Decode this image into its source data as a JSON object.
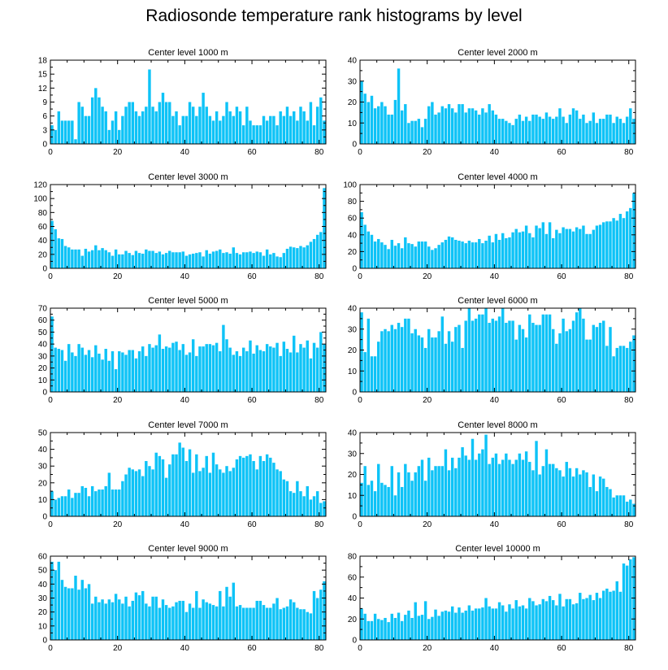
{
  "title": "Radiosonde temperature rank histograms by level",
  "bar_color": "#0ec3f7",
  "chart_data": [
    {
      "type": "bar",
      "title": "Center level 1000 m",
      "xlim": [
        0,
        82
      ],
      "ylim": [
        0,
        18
      ],
      "xticks": [
        0,
        20,
        40,
        60,
        80
      ],
      "yticks": [
        0,
        3,
        6,
        9,
        12,
        15,
        18
      ],
      "values": [
        4,
        3,
        7,
        5,
        5,
        5,
        5,
        1,
        9,
        8,
        6,
        6,
        10,
        12,
        10,
        8,
        7,
        3,
        5,
        7,
        3,
        6,
        8,
        9,
        9,
        7,
        6,
        7,
        8,
        16,
        8,
        7,
        9,
        11,
        9,
        9,
        6,
        7,
        4,
        6,
        6,
        9,
        8,
        6,
        8,
        11,
        8,
        6,
        5,
        7,
        5,
        6,
        9,
        7,
        6,
        8,
        7,
        4,
        8,
        5,
        4,
        4,
        4,
        6,
        5,
        6,
        6,
        4,
        7,
        6,
        8,
        6,
        7,
        5,
        8,
        7,
        5,
        9,
        4,
        8,
        10,
        5
      ],
      "plot": {
        "x0": 62,
        "y0": 74,
        "w": 339,
        "h": 103
      }
    },
    {
      "type": "bar",
      "title": "Center level 2000 m",
      "xlim": [
        0,
        82
      ],
      "ylim": [
        0,
        40
      ],
      "xticks": [
        0,
        20,
        40,
        60,
        80
      ],
      "yticks": [
        0,
        10,
        20,
        30,
        40
      ],
      "values": [
        30,
        24,
        20,
        23,
        17,
        18,
        20,
        18,
        14,
        14,
        21,
        36,
        16,
        19,
        10,
        11,
        11,
        12,
        8,
        12,
        18,
        20,
        14,
        15,
        18,
        17,
        19,
        17,
        15,
        19,
        19,
        15,
        17,
        17,
        16,
        14,
        17,
        15,
        19,
        16,
        14,
        12,
        12,
        11,
        10,
        9,
        12,
        14,
        11,
        13,
        11,
        14,
        14,
        13,
        12,
        15,
        13,
        12,
        13,
        17,
        13,
        10,
        14,
        17,
        16,
        12,
        14,
        10,
        11,
        15,
        10,
        12,
        12,
        14,
        14,
        10,
        13,
        12,
        10,
        13,
        17,
        12
      ],
      "plot": {
        "x0": 443,
        "y0": 74,
        "w": 339,
        "h": 103
      }
    },
    {
      "type": "bar",
      "title": "Center level 3000 m",
      "xlim": [
        0,
        82
      ],
      "ylim": [
        0,
        120
      ],
      "xticks": [
        0,
        20,
        40,
        60,
        80
      ],
      "yticks": [
        0,
        20,
        40,
        60,
        80,
        100,
        120
      ],
      "values": [
        68,
        56,
        43,
        42,
        32,
        30,
        27,
        27,
        27,
        18,
        28,
        24,
        26,
        33,
        26,
        29,
        26,
        23,
        18,
        27,
        20,
        20,
        25,
        22,
        19,
        25,
        22,
        21,
        27,
        25,
        25,
        22,
        24,
        20,
        22,
        25,
        23,
        23,
        23,
        24,
        18,
        20,
        21,
        22,
        23,
        17,
        26,
        21,
        24,
        25,
        27,
        22,
        23,
        21,
        30,
        22,
        20,
        23,
        23,
        24,
        22,
        24,
        23,
        18,
        27,
        20,
        22,
        17,
        16,
        22,
        28,
        31,
        30,
        29,
        32,
        30,
        33,
        38,
        42,
        48,
        52,
        115
      ],
      "plot": {
        "x0": 62,
        "y0": 227,
        "w": 339,
        "h": 103
      }
    },
    {
      "type": "bar",
      "title": "Center level 4000 m",
      "xlim": [
        0,
        82
      ],
      "ylim": [
        0,
        100
      ],
      "xticks": [
        0,
        20,
        40,
        60,
        80
      ],
      "yticks": [
        0,
        20,
        40,
        60,
        80,
        100
      ],
      "values": [
        67,
        52,
        44,
        40,
        32,
        35,
        31,
        28,
        23,
        34,
        27,
        30,
        24,
        37,
        30,
        29,
        26,
        32,
        32,
        32,
        26,
        22,
        24,
        28,
        31,
        34,
        38,
        37,
        34,
        33,
        32,
        30,
        33,
        31,
        31,
        35,
        30,
        33,
        39,
        31,
        41,
        34,
        42,
        36,
        37,
        43,
        47,
        43,
        44,
        51,
        42,
        37,
        51,
        48,
        55,
        41,
        55,
        36,
        46,
        42,
        49,
        47,
        47,
        44,
        49,
        47,
        51,
        41,
        41,
        46,
        51,
        52,
        55,
        56,
        56,
        60,
        57,
        65,
        60,
        68,
        72,
        90
      ],
      "plot": {
        "x0": 443,
        "y0": 227,
        "w": 339,
        "h": 103
      }
    },
    {
      "type": "bar",
      "title": "Center level 5000 m",
      "xlim": [
        0,
        82
      ],
      "ylim": [
        0,
        70
      ],
      "xticks": [
        0,
        20,
        40,
        60,
        80
      ],
      "yticks": [
        0,
        10,
        20,
        30,
        40,
        50,
        60,
        70
      ],
      "values": [
        63,
        37,
        36,
        35,
        26,
        40,
        33,
        30,
        40,
        37,
        31,
        35,
        29,
        39,
        32,
        27,
        36,
        26,
        34,
        19,
        34,
        33,
        31,
        35,
        35,
        28,
        34,
        38,
        30,
        40,
        37,
        39,
        48,
        36,
        38,
        37,
        41,
        42,
        35,
        40,
        31,
        33,
        44,
        30,
        38,
        38,
        40,
        40,
        39,
        41,
        34,
        56,
        44,
        37,
        31,
        34,
        30,
        37,
        34,
        43,
        32,
        39,
        35,
        34,
        40,
        38,
        37,
        41,
        30,
        42,
        36,
        33,
        47,
        33,
        40,
        37,
        43,
        28,
        41,
        37,
        50,
        40
      ],
      "plot": {
        "x0": 62,
        "y0": 379,
        "w": 339,
        "h": 103
      }
    },
    {
      "type": "bar",
      "title": "Center level 6000 m",
      "xlim": [
        0,
        82
      ],
      "ylim": [
        0,
        40
      ],
      "xticks": [
        0,
        20,
        40,
        60,
        80
      ],
      "yticks": [
        0,
        10,
        20,
        30,
        40
      ],
      "values": [
        38,
        19,
        35,
        17,
        17,
        24,
        29,
        30,
        29,
        32,
        30,
        33,
        31,
        35,
        35,
        28,
        30,
        27,
        26,
        21,
        30,
        26,
        26,
        29,
        36,
        23,
        29,
        24,
        31,
        32,
        21,
        34,
        40,
        34,
        35,
        37,
        37,
        40,
        33,
        35,
        34,
        36,
        40,
        33,
        34,
        34,
        25,
        32,
        30,
        26,
        37,
        33,
        32,
        32,
        37,
        37,
        37,
        30,
        23,
        28,
        35,
        29,
        30,
        34,
        38,
        40,
        35,
        25,
        25,
        32,
        31,
        33,
        34,
        22,
        31,
        17,
        21,
        22,
        22,
        21,
        24,
        27
      ],
      "plot": {
        "x0": 443,
        "y0": 379,
        "w": 339,
        "h": 103
      }
    },
    {
      "type": "bar",
      "title": "Center level 7000 m",
      "xlim": [
        0,
        82
      ],
      "ylim": [
        0,
        50
      ],
      "xticks": [
        0,
        20,
        40,
        60,
        80
      ],
      "yticks": [
        0,
        10,
        20,
        30,
        40,
        50
      ],
      "values": [
        15,
        10,
        11,
        12,
        12,
        16,
        11,
        14,
        14,
        18,
        17,
        12,
        18,
        15,
        16,
        16,
        18,
        26,
        16,
        16,
        16,
        21,
        25,
        29,
        28,
        27,
        28,
        24,
        33,
        30,
        28,
        38,
        36,
        34,
        23,
        31,
        37,
        37,
        44,
        41,
        33,
        40,
        26,
        37,
        27,
        29,
        36,
        26,
        38,
        31,
        28,
        26,
        30,
        27,
        29,
        34,
        36,
        35,
        36,
        37,
        33,
        28,
        36,
        33,
        37,
        35,
        32,
        28,
        27,
        22,
        21,
        15,
        14,
        21,
        15,
        12,
        18,
        10,
        12,
        15,
        8,
        9
      ],
      "plot": {
        "x0": 62,
        "y0": 532,
        "w": 339,
        "h": 103
      }
    },
    {
      "type": "bar",
      "title": "Center level 8000 m",
      "xlim": [
        0,
        82
      ],
      "ylim": [
        0,
        40
      ],
      "xticks": [
        0,
        20,
        40,
        60,
        80
      ],
      "yticks": [
        0,
        10,
        20,
        30,
        40
      ],
      "values": [
        16,
        24,
        15,
        17,
        12,
        25,
        16,
        15,
        14,
        24,
        10,
        21,
        14,
        25,
        21,
        17,
        21,
        24,
        27,
        17,
        28,
        22,
        24,
        24,
        24,
        32,
        22,
        28,
        23,
        28,
        33,
        29,
        27,
        37,
        27,
        30,
        32,
        39,
        25,
        28,
        30,
        25,
        27,
        30,
        27,
        25,
        27,
        30,
        27,
        31,
        26,
        22,
        36,
        20,
        24,
        32,
        25,
        25,
        23,
        22,
        19,
        26,
        23,
        19,
        23,
        20,
        22,
        21,
        14,
        20,
        12,
        19,
        18,
        14,
        13,
        9,
        10,
        10,
        10,
        7,
        8,
        6
      ],
      "plot": {
        "x0": 443,
        "y0": 532,
        "w": 339,
        "h": 103
      }
    },
    {
      "type": "bar",
      "title": "Center level 9000 m",
      "xlim": [
        0,
        82
      ],
      "ylim": [
        0,
        60
      ],
      "xticks": [
        0,
        20,
        40,
        60,
        80
      ],
      "yticks": [
        0,
        10,
        20,
        30,
        40,
        50,
        60
      ],
      "values": [
        56,
        50,
        56,
        43,
        38,
        37,
        37,
        46,
        36,
        43,
        37,
        40,
        26,
        31,
        27,
        29,
        26,
        29,
        27,
        33,
        29,
        26,
        31,
        24,
        28,
        34,
        32,
        35,
        26,
        24,
        31,
        31,
        23,
        29,
        25,
        23,
        24,
        27,
        28,
        28,
        20,
        26,
        23,
        35,
        23,
        29,
        27,
        26,
        25,
        24,
        35,
        24,
        38,
        31,
        41,
        24,
        25,
        23,
        23,
        23,
        23,
        28,
        28,
        25,
        23,
        23,
        26,
        30,
        22,
        23,
        24,
        29,
        27,
        23,
        22,
        22,
        20,
        19,
        35,
        30,
        36,
        42
      ],
      "plot": {
        "x0": 62,
        "y0": 684,
        "w": 339,
        "h": 103
      }
    },
    {
      "type": "bar",
      "title": "Center level 10000 m",
      "xlim": [
        0,
        82
      ],
      "ylim": [
        0,
        80
      ],
      "xticks": [
        0,
        20,
        40,
        60,
        80
      ],
      "yticks": [
        0,
        20,
        40,
        60,
        80
      ],
      "values": [
        30,
        25,
        18,
        18,
        25,
        20,
        19,
        21,
        17,
        25,
        21,
        26,
        18,
        24,
        28,
        21,
        36,
        23,
        24,
        37,
        20,
        22,
        29,
        23,
        27,
        28,
        27,
        32,
        26,
        31,
        26,
        28,
        33,
        28,
        30,
        30,
        31,
        40,
        32,
        30,
        30,
        36,
        33,
        27,
        34,
        30,
        38,
        32,
        33,
        30,
        40,
        37,
        33,
        34,
        39,
        37,
        42,
        38,
        33,
        44,
        32,
        39,
        39,
        34,
        35,
        45,
        39,
        40,
        43,
        38,
        45,
        40,
        47,
        49,
        46,
        47,
        56,
        46,
        73,
        71,
        77,
        79
      ],
      "plot": {
        "x0": 443,
        "y0": 684,
        "w": 339,
        "h": 103
      }
    }
  ]
}
